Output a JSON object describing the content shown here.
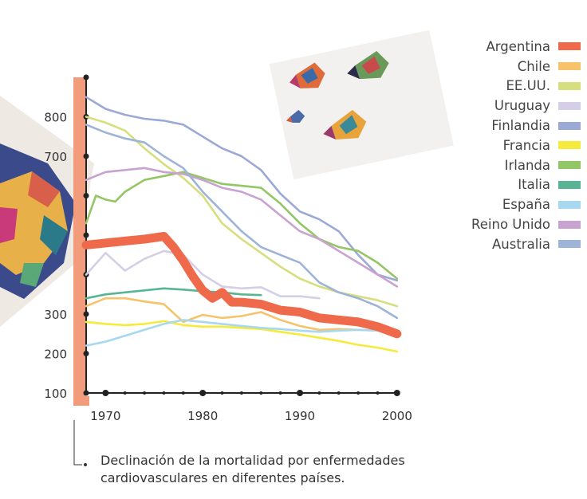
{
  "chart_data": {
    "type": "line",
    "title": "",
    "xlabel": "",
    "ylabel": "",
    "xlim": [
      1968,
      2001
    ],
    "ylim": [
      100,
      900
    ],
    "x_ticks": [
      "1970",
      "1980",
      "1990",
      "2000"
    ],
    "y_ticks": [
      "100",
      "200",
      "300",
      "700",
      "800"
    ],
    "y_tick_values": [
      100,
      200,
      300,
      700,
      800
    ],
    "legend_position": "top-right",
    "grid": false,
    "series": [
      {
        "name": "Argentina",
        "color": "#ef6a4a",
        "x": [
          1968,
          1970,
          1972,
          1974,
          1976,
          1977,
          1978,
          1979,
          1980,
          1981,
          1982,
          1983,
          1984,
          1986,
          1988,
          1990,
          1992,
          1994,
          1996,
          1998,
          2000
        ],
        "y": [
          475,
          480,
          485,
          490,
          497,
          470,
          435,
          395,
          360,
          340,
          355,
          330,
          330,
          325,
          310,
          305,
          290,
          285,
          280,
          268,
          250
        ]
      },
      {
        "name": "Chile",
        "color": "#f7c36a",
        "x": [
          1968,
          1970,
          1972,
          1974,
          1976,
          1978,
          1980,
          1982,
          1984,
          1986,
          1988,
          1990,
          1992,
          1994,
          1996,
          1998
        ],
        "y": [
          320,
          340,
          340,
          332,
          325,
          280,
          298,
          290,
          295,
          305,
          285,
          270,
          260,
          262,
          260,
          258
        ]
      },
      {
        "name": "EE.UU.",
        "color": "#d7de7d",
        "x": [
          1968,
          1970,
          1972,
          1974,
          1976,
          1978,
          1980,
          1982,
          1984,
          1986,
          1988,
          1990,
          1992,
          1994,
          1996,
          1998,
          2000
        ],
        "y": [
          800,
          785,
          765,
          720,
          680,
          645,
          600,
          530,
          490,
          455,
          420,
          390,
          370,
          355,
          345,
          335,
          320
        ]
      },
      {
        "name": "Uruguay",
        "color": "#d4cfe6",
        "x": [
          1968,
          1970,
          1972,
          1974,
          1976,
          1978,
          1980,
          1982,
          1984,
          1986,
          1988,
          1990,
          1992
        ],
        "y": [
          400,
          455,
          410,
          440,
          460,
          450,
          400,
          370,
          365,
          368,
          345,
          345,
          340
        ]
      },
      {
        "name": "Finlandia",
        "color": "#9ca9d6",
        "x": [
          1968,
          1970,
          1972,
          1974,
          1976,
          1978,
          1980,
          1982,
          1984,
          1986,
          1988,
          1990,
          1992,
          1994,
          1996,
          1998,
          2000
        ],
        "y": [
          850,
          820,
          805,
          795,
          790,
          780,
          750,
          720,
          700,
          665,
          605,
          560,
          540,
          510,
          450,
          400,
          385
        ]
      },
      {
        "name": "Francia",
        "color": "#f6ea3c",
        "x": [
          1968,
          1970,
          1972,
          1974,
          1976,
          1978,
          1980,
          1982,
          1984,
          1986,
          1988,
          1990,
          1992,
          1994,
          1996,
          1998,
          2000
        ],
        "y": [
          280,
          275,
          272,
          275,
          282,
          272,
          268,
          268,
          265,
          262,
          255,
          248,
          240,
          232,
          222,
          215,
          205
        ]
      },
      {
        "name": "Irlanda",
        "color": "#93c664",
        "x": [
          1968,
          1969,
          1970,
          1971,
          1972,
          1974,
          1976,
          1978,
          1980,
          1982,
          1984,
          1986,
          1988,
          1990,
          1992,
          1994,
          1996,
          1998,
          2000
        ],
        "y": [
          530,
          600,
          590,
          585,
          610,
          640,
          650,
          660,
          645,
          630,
          625,
          620,
          580,
          530,
          490,
          470,
          460,
          430,
          390
        ]
      },
      {
        "name": "Italia",
        "color": "#58b594",
        "x": [
          1968,
          1970,
          1972,
          1974,
          1976,
          1978,
          1980,
          1982,
          1984,
          1986
        ],
        "y": [
          340,
          350,
          355,
          360,
          365,
          362,
          358,
          355,
          350,
          348
        ]
      },
      {
        "name": "España",
        "color": "#a7d8ef",
        "x": [
          1968,
          1970,
          1972,
          1974,
          1976,
          1978,
          1980,
          1982,
          1984,
          1986,
          1988,
          1990,
          1992,
          1994,
          1996,
          1998
        ],
        "y": [
          220,
          230,
          245,
          260,
          275,
          285,
          280,
          275,
          270,
          265,
          262,
          258,
          255,
          258,
          260,
          258
        ]
      },
      {
        "name": "Reino Unido",
        "color": "#c8a2d0",
        "x": [
          1968,
          1970,
          1972,
          1974,
          1976,
          1978,
          1980,
          1982,
          1984,
          1986,
          1988,
          1990,
          1992,
          1994,
          1996,
          1998,
          2000
        ],
        "y": [
          640,
          660,
          665,
          670,
          660,
          655,
          640,
          620,
          610,
          590,
          550,
          510,
          490,
          460,
          430,
          400,
          370
        ]
      },
      {
        "name": "Australia",
        "color": "#9db4d8",
        "x": [
          1968,
          1970,
          1972,
          1974,
          1976,
          1978,
          1980,
          1982,
          1984,
          1986,
          1988,
          1990,
          1992,
          1994,
          1996,
          1998,
          2000
        ],
        "y": [
          780,
          760,
          745,
          735,
          700,
          670,
          610,
          560,
          510,
          470,
          450,
          430,
          380,
          355,
          340,
          320,
          290
        ]
      }
    ]
  },
  "caption": "Declinación de la mortalidad por enfermedades cardiovasculares en diferentes países."
}
